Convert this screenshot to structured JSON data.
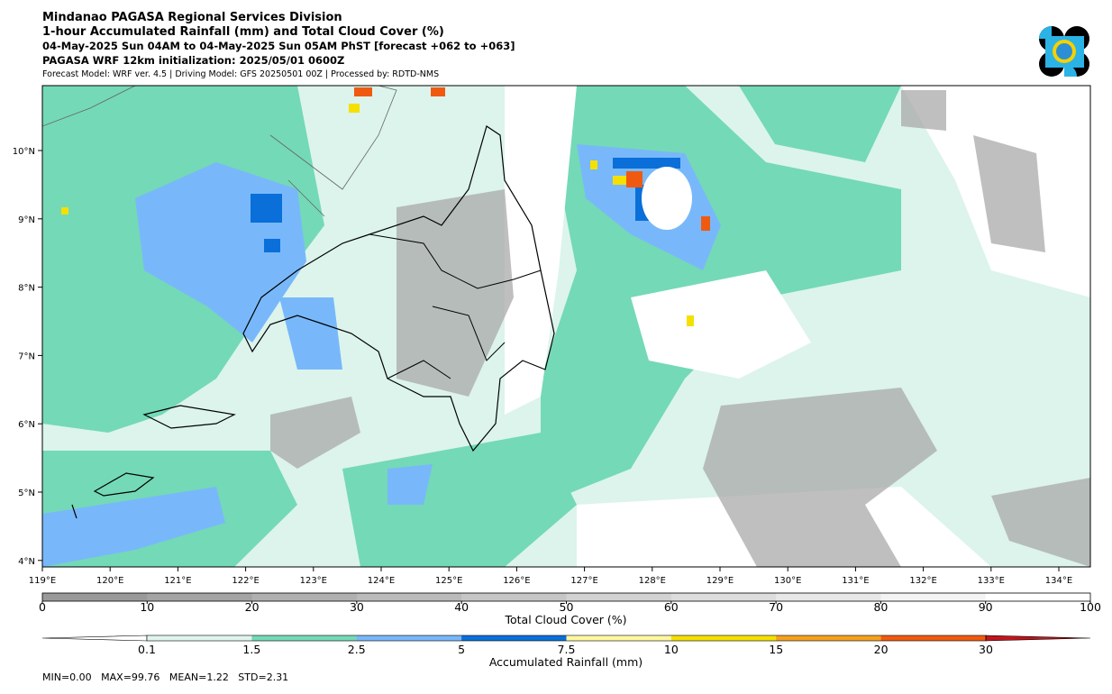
{
  "header": {
    "lines": [
      "Mindanao PAGASA Regional Services Division",
      "1-hour Accumulated Rainfall (mm) and Total Cloud Cover (%)",
      "04-May-2025 Sun 04AM to 04-May-2025 Sun 05AM PhST [forecast +062 to +063]",
      "PAGASA WRF 12km initialization: 2025/05/01 0600Z",
      "Forecast Model: WRF ver. 4.5 | Driving Model: GFS 20250501 00Z | Processed by: RDTD-NMS"
    ]
  },
  "map": {
    "longitude_labels": [
      "119°E",
      "120°E",
      "121°E",
      "122°E",
      "123°E",
      "124°E",
      "125°E",
      "126°E",
      "127°E",
      "128°E",
      "129°E",
      "130°E",
      "131°E",
      "132°E",
      "133°E",
      "134°E"
    ],
    "latitude_labels": [
      "10°N",
      "9°N",
      "8°N",
      "7°N",
      "6°N",
      "5°N",
      "4°N"
    ]
  },
  "cloud_colorbar": {
    "ticks": [
      "0",
      "10",
      "20",
      "30",
      "40",
      "50",
      "60",
      "70",
      "80",
      "90",
      "100"
    ],
    "label": "Total Cloud Cover (%)"
  },
  "rain_colorbar": {
    "ticks": [
      "0.1",
      "1.5",
      "2.5",
      "5",
      "7.5",
      "10",
      "15",
      "20",
      "30"
    ],
    "label": "Accumulated Rainfall (mm)"
  },
  "stats": "MIN=0.00   MAX=99.76   MEAN=1.22   STD=2.31"
}
